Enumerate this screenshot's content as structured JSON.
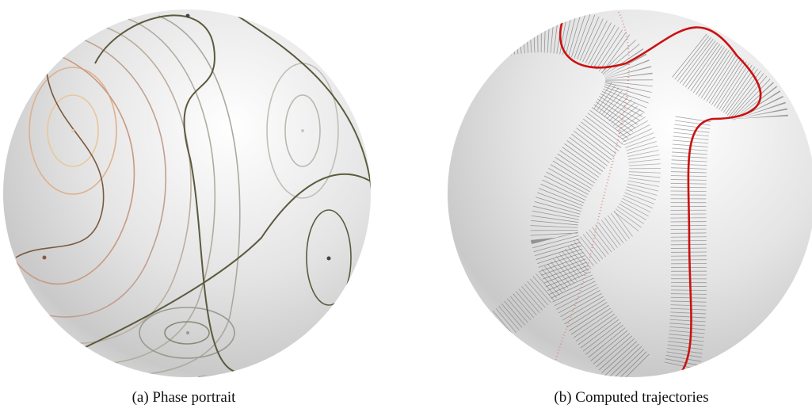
{
  "figures": [
    {
      "caption": "(a) Phase portrait"
    },
    {
      "caption": "(b) Computed trajectories"
    }
  ]
}
